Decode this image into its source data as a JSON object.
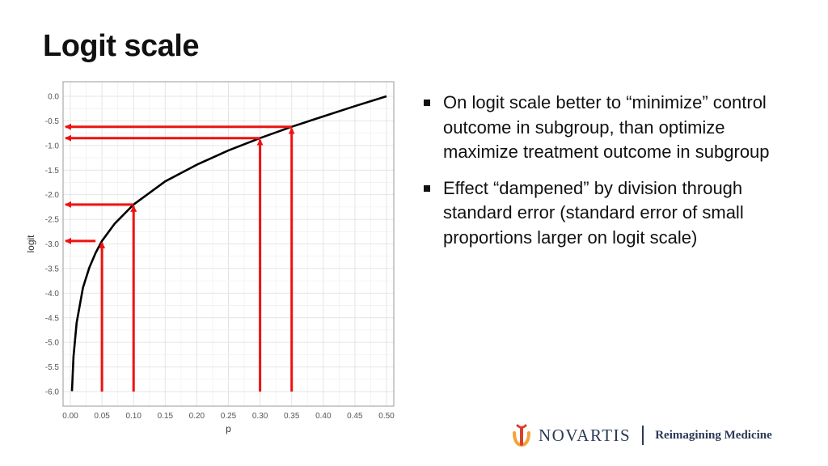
{
  "slide": {
    "title": "Logit scale"
  },
  "bullets": [
    "On logit scale better to “minimize” control outcome in subgroup, than optimize maximize treatment outcome in subgroup",
    "Effect “dampened” by division through standard error (standard error of small proportions larger on logit scale)"
  ],
  "chart_data": {
    "type": "line",
    "xlabel": "p",
    "ylabel": "logit",
    "xlim": [
      0.0,
      0.5
    ],
    "ylim": [
      -6.0,
      0.0
    ],
    "x_ticks": [
      "0.00",
      "0.05",
      "0.10",
      "0.15",
      "0.20",
      "0.25",
      "0.30",
      "0.35",
      "0.40",
      "0.45",
      "0.50"
    ],
    "y_ticks": [
      "0.0",
      "-0.5",
      "-1.0",
      "-1.5",
      "-2.0",
      "-2.5",
      "-3.0",
      "-3.5",
      "-4.0",
      "-4.5",
      "-5.0",
      "-5.5",
      "-6.0"
    ],
    "grid": true,
    "series": [
      {
        "x": [
          0.0025,
          0.005,
          0.01,
          0.02,
          0.03,
          0.04,
          0.05,
          0.07,
          0.1,
          0.15,
          0.2,
          0.25,
          0.3,
          0.35,
          0.4,
          0.45,
          0.5
        ],
        "y": [
          -5.99,
          -5.29,
          -4.6,
          -3.89,
          -3.48,
          -3.18,
          -2.94,
          -2.59,
          -2.2,
          -1.73,
          -1.39,
          -1.1,
          -0.85,
          -0.62,
          -0.41,
          -0.2,
          0.0
        ],
        "color": "#000000"
      }
    ],
    "annotations": [
      {
        "p": 0.05,
        "logit": -2.94
      },
      {
        "p": 0.1,
        "logit": -2.2
      },
      {
        "p": 0.3,
        "logit": -0.85
      },
      {
        "p": 0.35,
        "logit": -0.62
      }
    ],
    "annotation_color": "#ee1111",
    "background": "#ffffff",
    "grid_color": "#e4e4e4"
  },
  "footer": {
    "brand": "NOVARTIS",
    "tagline": "Reimagining Medicine",
    "brand_color": "#2b3a55",
    "logo_color": "#f2a33a"
  }
}
